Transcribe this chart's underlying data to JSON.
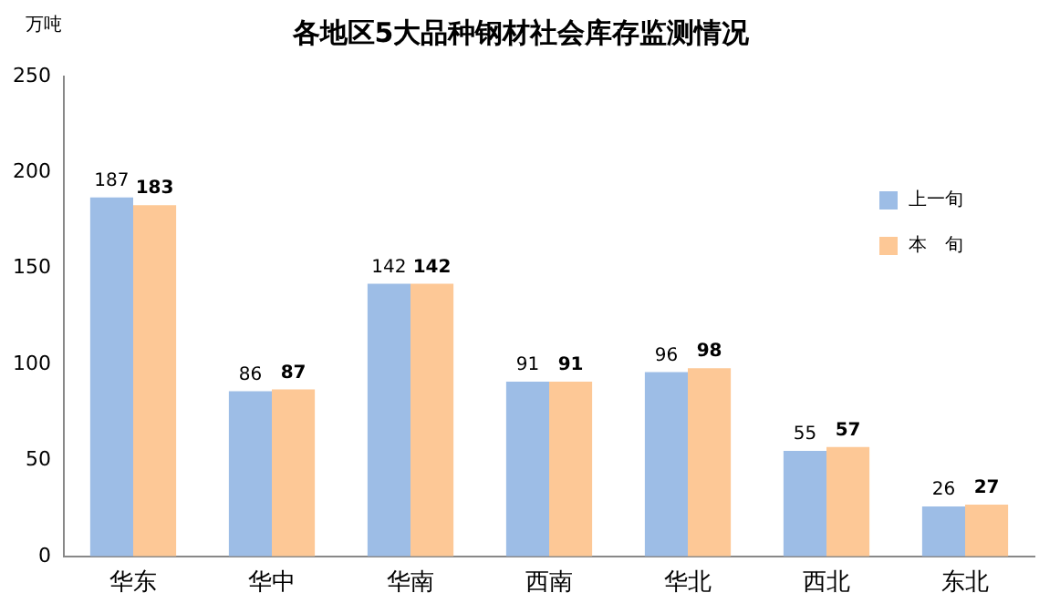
{
  "chart_data": {
    "type": "bar",
    "title": "各地区5大品种钢材社会库存监测情况",
    "ylabel": "万吨",
    "categories": [
      "华东",
      "华中",
      "华南",
      "西南",
      "华北",
      "西北",
      "东北"
    ],
    "series": [
      {
        "name": "上一旬",
        "color": "#9dbde6",
        "values": [
          187,
          86,
          142,
          91,
          96,
          55,
          26
        ]
      },
      {
        "name": "本　旬",
        "color": "#fdc896",
        "values": [
          183,
          87,
          142,
          91,
          98,
          57,
          27
        ]
      }
    ],
    "ylim": [
      0,
      250
    ],
    "yticks": [
      0,
      50,
      100,
      150,
      200,
      250
    ],
    "grid": false,
    "legend": "right",
    "data_labels": true
  }
}
